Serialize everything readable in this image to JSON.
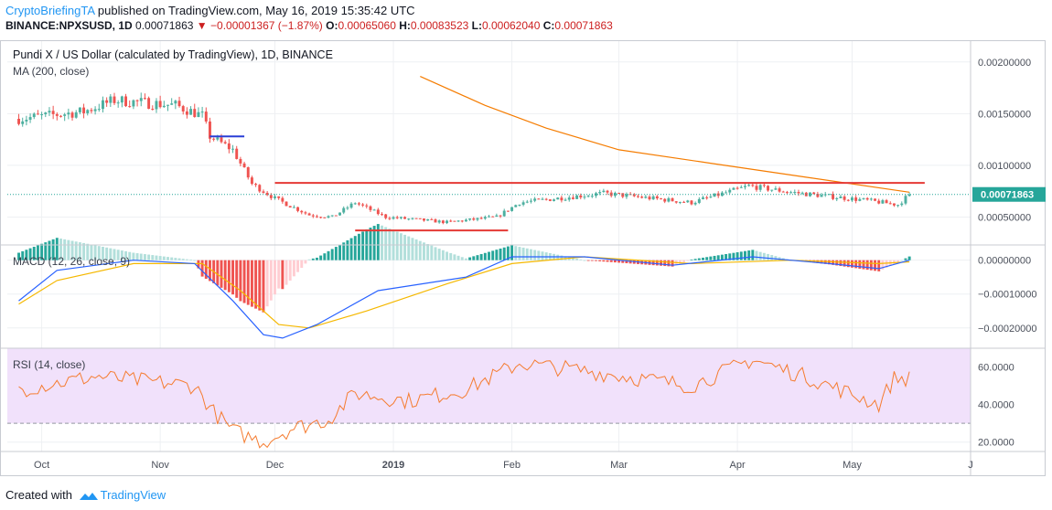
{
  "header": {
    "author": "CryptoBriefingTA",
    "published_text": "published on TradingView.com, May 16, 2019 15:35:42 UTC",
    "symbol": "BINANCE:NPXSUSD, 1D",
    "last": "0.00071863",
    "change": "−0.00001367 (−1.87%)",
    "open_label": "O:",
    "open": "0.00065060",
    "high_label": "H:",
    "high": "0.00083523",
    "low_label": "L:",
    "low": "0.00062040",
    "close_label": "C:",
    "close": "0.00071863"
  },
  "panes": {
    "price_title": "Pundi X / US Dollar (calculated by TradingView), 1D, BINANCE",
    "ma_label": "MA (200, close)",
    "macd_label": "MACD (12, 26, close, 9)",
    "rsi_label": "RSI (14, close)"
  },
  "footer": {
    "created_with": "Created with",
    "brand": "TradingView"
  },
  "colors": {
    "up": "#4caf9f",
    "down": "#ef5350",
    "ma": "#f57c00",
    "macd": "#2962ff",
    "signal": "#f5b800",
    "rsi": "#f57c30",
    "resistance": "#e53935",
    "support_blue": "#2a3fd6",
    "last_price_badge": "#26a69a",
    "rsi_band": "#f1e1fb"
  },
  "chart_data": [
    {
      "type": "candlestick",
      "title": "Pundi X / US Dollar (calculated by TradingView), 1D, BINANCE",
      "x_tick_labels": [
        "Oct",
        "Nov",
        "Dec",
        "2019",
        "Feb",
        "Mar",
        "Apr",
        "May",
        "J"
      ],
      "y_tick_labels": [
        "0.00200000",
        "0.00150000",
        "0.00100000",
        "0.00050000"
      ],
      "ylim": [
        0.00023,
        0.00221
      ],
      "last_price_label": "0.00071863",
      "anchor_closes": [
        {
          "date": "2018-09-25",
          "close": 0.00145
        },
        {
          "date": "2018-10-12",
          "close": 0.00152
        },
        {
          "date": "2018-10-20",
          "close": 0.00163
        },
        {
          "date": "2018-11-05",
          "close": 0.00158
        },
        {
          "date": "2018-11-12",
          "close": 0.00148
        },
        {
          "date": "2018-11-14",
          "close": 0.00128
        },
        {
          "date": "2018-11-20",
          "close": 0.00115
        },
        {
          "date": "2018-11-25",
          "close": 0.00082
        },
        {
          "date": "2018-12-01",
          "close": 0.00068
        },
        {
          "date": "2018-12-10",
          "close": 0.00052
        },
        {
          "date": "2018-12-16",
          "close": 0.0005
        },
        {
          "date": "2018-12-22",
          "close": 0.00064
        },
        {
          "date": "2018-12-30",
          "close": 0.0005
        },
        {
          "date": "2019-01-15",
          "close": 0.00045
        },
        {
          "date": "2019-01-28",
          "close": 0.0005
        },
        {
          "date": "2019-02-03",
          "close": 0.00064
        },
        {
          "date": "2019-02-25",
          "close": 0.00073
        },
        {
          "date": "2019-03-20",
          "close": 0.00064
        },
        {
          "date": "2019-04-04",
          "close": 0.0008
        },
        {
          "date": "2019-04-15",
          "close": 0.00074
        },
        {
          "date": "2019-05-05",
          "close": 0.00066
        },
        {
          "date": "2019-05-13",
          "close": 0.00062
        },
        {
          "date": "2019-05-16",
          "close": 0.00071863
        }
      ],
      "ma200": [
        {
          "date": "2019-01-08",
          "value": 0.00186
        },
        {
          "date": "2019-01-25",
          "value": 0.00158
        },
        {
          "date": "2019-02-10",
          "value": 0.00136
        },
        {
          "date": "2019-03-01",
          "value": 0.00115
        },
        {
          "date": "2019-03-25",
          "value": 0.00102
        },
        {
          "date": "2019-04-20",
          "value": 0.00088
        },
        {
          "date": "2019-05-16",
          "value": 0.00074
        }
      ],
      "lines": [
        {
          "name": "resistance",
          "from": "2018-12-01",
          "to": "2019-05-20",
          "value": 0.00083
        },
        {
          "name": "support",
          "from": "2018-12-22",
          "to": "2019-01-31",
          "value": 0.00037
        },
        {
          "name": "support-top",
          "from": "2018-11-14",
          "to": "2018-11-23",
          "value": 0.00128
        }
      ]
    },
    {
      "type": "line",
      "title": "MACD (12, 26, close, 9)",
      "y_tick_labels": [
        "0.00000000",
        "−0.00010000",
        "−0.00020000"
      ],
      "ylim": [
        -0.00026,
        4.5e-05
      ],
      "series": [
        {
          "name": "macd",
          "points": [
            {
              "date": "2018-09-25",
              "value": -0.00012
            },
            {
              "date": "2018-10-05",
              "value": -3e-05
            },
            {
              "date": "2018-10-25",
              "value": 0.0
            },
            {
              "date": "2018-11-10",
              "value": -1e-05
            },
            {
              "date": "2018-11-20",
              "value": -0.00012
            },
            {
              "date": "2018-11-28",
              "value": -0.00022
            },
            {
              "date": "2018-12-03",
              "value": -0.00023
            },
            {
              "date": "2018-12-12",
              "value": -0.00019
            },
            {
              "date": "2018-12-28",
              "value": -9e-05
            },
            {
              "date": "2019-01-20",
              "value": -5e-05
            },
            {
              "date": "2019-02-01",
              "value": 1e-05
            },
            {
              "date": "2019-02-20",
              "value": 1e-05
            },
            {
              "date": "2019-03-15",
              "value": -1.5e-05
            },
            {
              "date": "2019-04-05",
              "value": 1e-05
            },
            {
              "date": "2019-04-25",
              "value": -1e-05
            },
            {
              "date": "2019-05-08",
              "value": -2.5e-05
            },
            {
              "date": "2019-05-16",
              "value": 0.0
            }
          ]
        },
        {
          "name": "signal",
          "points": [
            {
              "date": "2018-09-25",
              "value": -0.00013
            },
            {
              "date": "2018-10-05",
              "value": -6e-05
            },
            {
              "date": "2018-10-25",
              "value": -1e-05
            },
            {
              "date": "2018-11-12",
              "value": -1e-05
            },
            {
              "date": "2018-11-22",
              "value": -9e-05
            },
            {
              "date": "2018-12-02",
              "value": -0.00019
            },
            {
              "date": "2018-12-10",
              "value": -0.0002
            },
            {
              "date": "2018-12-25",
              "value": -0.00015
            },
            {
              "date": "2019-01-15",
              "value": -7e-05
            },
            {
              "date": "2019-02-01",
              "value": -1e-05
            },
            {
              "date": "2019-02-20",
              "value": 1e-05
            },
            {
              "date": "2019-03-20",
              "value": -1e-05
            },
            {
              "date": "2019-04-15",
              "value": 0.0
            },
            {
              "date": "2019-05-08",
              "value": -1e-05
            },
            {
              "date": "2019-05-16",
              "value": -5e-06
            }
          ]
        }
      ]
    },
    {
      "type": "line",
      "title": "RSI (14, close)",
      "y_tick_labels": [
        "60.0000",
        "40.0000",
        "20.0000"
      ],
      "ylim": [
        15,
        70
      ],
      "bands": [
        30,
        70
      ],
      "series": [
        {
          "name": "rsi",
          "points": [
            {
              "date": "2018-09-25",
              "value": 48
            },
            {
              "date": "2018-10-15",
              "value": 55
            },
            {
              "date": "2018-11-10",
              "value": 50
            },
            {
              "date": "2018-11-15",
              "value": 36
            },
            {
              "date": "2018-11-20",
              "value": 26
            },
            {
              "date": "2018-11-28",
              "value": 20
            },
            {
              "date": "2018-12-05",
              "value": 27
            },
            {
              "date": "2018-12-15",
              "value": 32
            },
            {
              "date": "2018-12-22",
              "value": 46
            },
            {
              "date": "2019-01-05",
              "value": 42
            },
            {
              "date": "2019-01-20",
              "value": 48
            },
            {
              "date": "2019-02-03",
              "value": 62
            },
            {
              "date": "2019-02-20",
              "value": 58
            },
            {
              "date": "2019-03-20",
              "value": 50
            },
            {
              "date": "2019-04-05",
              "value": 64
            },
            {
              "date": "2019-04-20",
              "value": 54
            },
            {
              "date": "2019-05-08",
              "value": 40
            },
            {
              "date": "2019-05-12",
              "value": 54
            },
            {
              "date": "2019-05-16",
              "value": 54
            }
          ]
        }
      ]
    }
  ]
}
